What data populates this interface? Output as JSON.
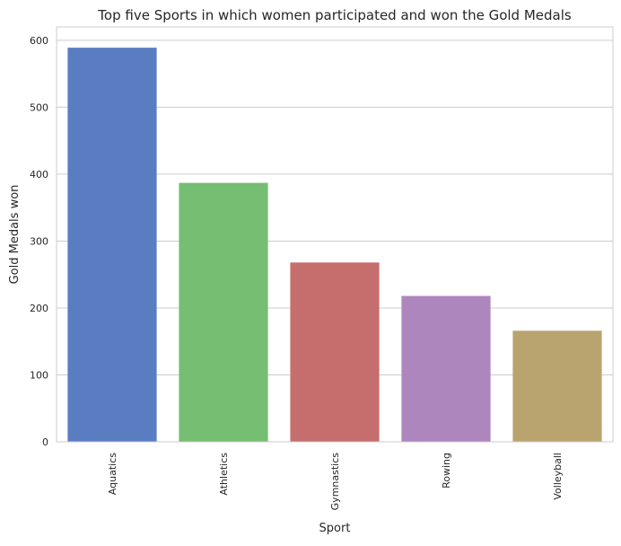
{
  "chart_data": {
    "type": "bar",
    "title": "Top five Sports in which women participated and won the Gold Medals",
    "xlabel": "Sport",
    "ylabel": "Gold Medals won",
    "categories": [
      "Aquatics",
      "Athletics",
      "Gymnastics",
      "Rowing",
      "Volleyball"
    ],
    "values": [
      589,
      387,
      268,
      218,
      166
    ],
    "colors": [
      "#5a7dc2",
      "#76be72",
      "#c66e6d",
      "#ad86bd",
      "#b9a46f"
    ],
    "ylim": [
      0,
      620
    ],
    "yticks": [
      0,
      100,
      200,
      300,
      400,
      500,
      600
    ],
    "grid": true,
    "x_tick_rotation": "vertical"
  }
}
